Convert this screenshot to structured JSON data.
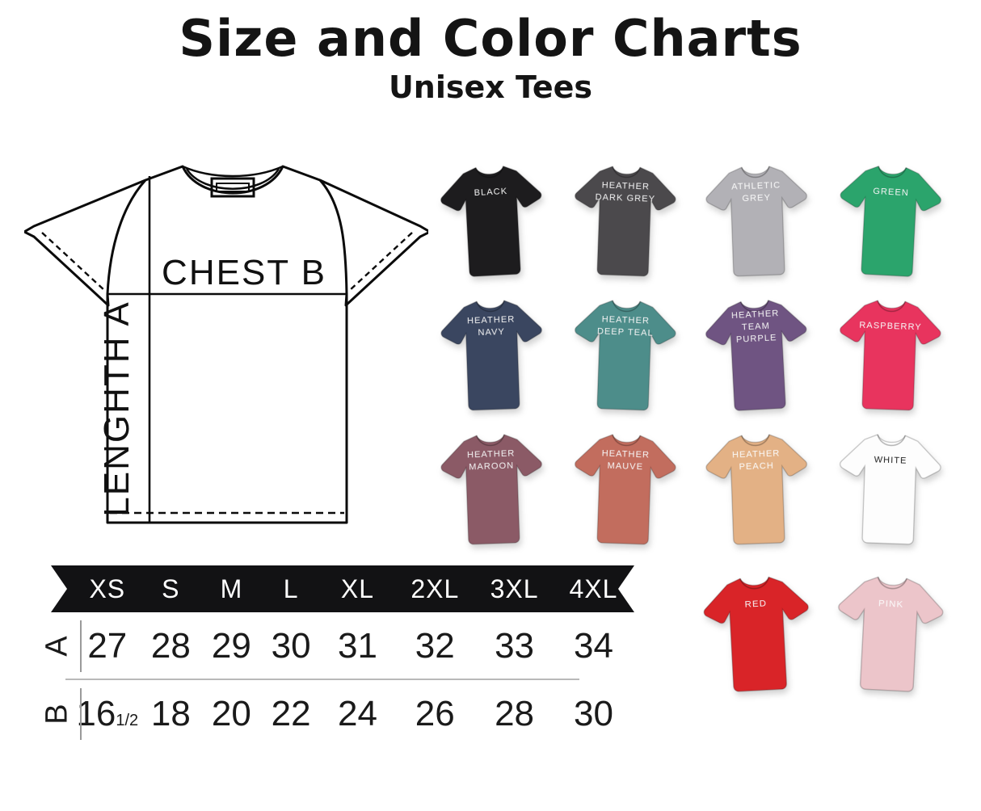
{
  "title": "Size and Color Charts",
  "subtitle": "Unisex Tees",
  "diagram": {
    "chest_label": "CHEST B",
    "length_label": "LENGHTH A"
  },
  "size_chart": {
    "sizes": [
      "XS",
      "S",
      "M",
      "L",
      "XL",
      "2XL",
      "3XL",
      "4XL"
    ],
    "rows": [
      {
        "label": "A",
        "values": [
          "27",
          "28",
          "29",
          "30",
          "31",
          "32",
          "33",
          "34"
        ]
      },
      {
        "label": "B",
        "values": [
          {
            "main": "16",
            "frac": "1/2"
          },
          "18",
          "20",
          "22",
          "24",
          "26",
          "28",
          "30"
        ]
      }
    ]
  },
  "chart_data": {
    "type": "table",
    "title": "Size and Color Charts",
    "subtitle": "Unisex Tees",
    "columns": [
      "XS",
      "S",
      "M",
      "L",
      "XL",
      "2XL",
      "3XL",
      "4XL"
    ],
    "rows": [
      {
        "label": "A (LENGHTH A)",
        "values": [
          27,
          28,
          29,
          30,
          31,
          32,
          33,
          34
        ]
      },
      {
        "label": "B (CHEST B)",
        "values": [
          16.5,
          18,
          20,
          22,
          24,
          26,
          28,
          30
        ]
      }
    ],
    "color_options": [
      "BLACK",
      "HEATHER DARK GREY",
      "ATHLETIC GREY",
      "GREEN",
      "HEATHER NAVY",
      "HEATHER DEEP TEAL",
      "HEATHER TEAM PURPLE",
      "RASPBERRY",
      "HEATHER MAROON",
      "HEATHER MAUVE",
      "HEATHER PEACH",
      "WHITE",
      "RED",
      "PINK"
    ]
  },
  "shirts": [
    {
      "name": "black",
      "label_lines": [
        "BLACK"
      ],
      "color": "#1d1c1e",
      "text_color": "#f4f4f4"
    },
    {
      "name": "heather-dark-grey",
      "label_lines": [
        "HEATHER",
        "DARK GREY"
      ],
      "color": "#4b494c",
      "text_color": "#f4f4f4"
    },
    {
      "name": "athletic-grey",
      "label_lines": [
        "ATHLETIC",
        "GREY"
      ],
      "color": "#b2b1b6",
      "text_color": "#fafafa"
    },
    {
      "name": "green",
      "label_lines": [
        "GREEN"
      ],
      "color": "#2ba46c",
      "text_color": "#f4f4f4"
    },
    {
      "name": "heather-navy",
      "label_lines": [
        "HEATHER",
        "NAVY"
      ],
      "color": "#3a4660",
      "text_color": "#f4f4f4"
    },
    {
      "name": "heather-deep-teal",
      "label_lines": [
        "HEATHER",
        "DEEP TEAL"
      ],
      "color": "#4d8d8a",
      "text_color": "#f4f4f4"
    },
    {
      "name": "heather-team-purple",
      "label_lines": [
        "HEATHER",
        "TEAM",
        "PURPLE"
      ],
      "color": "#6f5482",
      "text_color": "#f4f4f4"
    },
    {
      "name": "raspberry",
      "label_lines": [
        "RASPBERRY"
      ],
      "color": "#e8345e",
      "text_color": "#f7f7f7"
    },
    {
      "name": "heather-maroon",
      "label_lines": [
        "HEATHER",
        "MAROON"
      ],
      "color": "#8b5a66",
      "text_color": "#f4f4f4"
    },
    {
      "name": "heather-mauve",
      "label_lines": [
        "HEATHER",
        "MAUVE"
      ],
      "color": "#c26d5e",
      "text_color": "#f7f7f7"
    },
    {
      "name": "heather-peach",
      "label_lines": [
        "HEATHER",
        "PEACH"
      ],
      "color": "#e3b185",
      "text_color": "#fbfbfb"
    },
    {
      "name": "white",
      "label_lines": [
        "WHITE"
      ],
      "color": "#fdfdfd",
      "text_color": "#1e1e1e"
    },
    {
      "name": "red",
      "label_lines": [
        "RED"
      ],
      "color": "#d92428",
      "text_color": "#f7f7f7"
    },
    {
      "name": "pink",
      "label_lines": [
        "PINK"
      ],
      "color": "#ecc5ca",
      "text_color": "#fbfbfb"
    }
  ],
  "colors": {
    "banner_bg": "#121214",
    "divider": "#b9b9b9",
    "line": "#111111"
  }
}
